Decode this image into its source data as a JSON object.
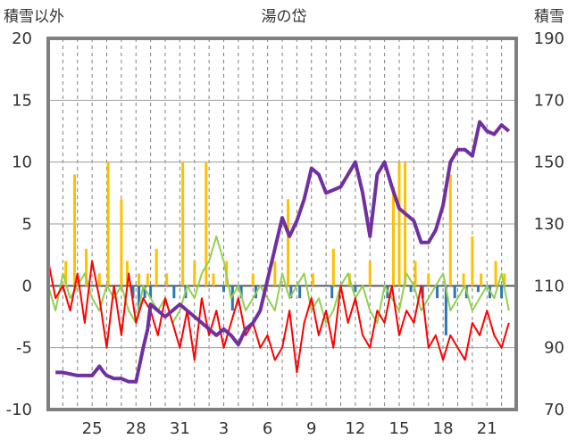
{
  "chart_data": {
    "type": "line",
    "title": "湯の岱",
    "left_axis_label": "積雪以外",
    "right_axis_label": "積雪",
    "left_ylim": [
      -10,
      20
    ],
    "right_ylim": [
      70,
      190
    ],
    "left_ticks": [
      "20",
      "15",
      "10",
      "5",
      "0",
      "-5",
      "-10"
    ],
    "right_ticks": [
      "190",
      "170",
      "150",
      "130",
      "110",
      "90",
      "70"
    ],
    "x_ticks": [
      {
        "day": 3,
        "label": "25"
      },
      {
        "day": 6,
        "label": "28"
      },
      {
        "day": 9,
        "label": "31"
      },
      {
        "day": 12,
        "label": "3"
      },
      {
        "day": 15,
        "label": "6"
      },
      {
        "day": 18,
        "label": "9"
      },
      {
        "day": 21,
        "label": "12"
      },
      {
        "day": 24,
        "label": "15"
      },
      {
        "day": 27,
        "label": "18"
      },
      {
        "day": 30,
        "label": "21"
      }
    ],
    "x_range_days": [
      0,
      32
    ],
    "grid": "vertical dashed daily, horizontal every 5",
    "colors": {
      "snow_depth": "#7030a0",
      "temperature": "#ff0000",
      "temp_secondary": "#92d050",
      "precipitation": "#ffc000",
      "snow_change": "#2e75b6",
      "frame": "#7f7f7f"
    },
    "series": [
      {
        "axis": "right",
        "color_key": "snow_depth",
        "x": [
          0.5,
          1,
          2,
          2.5,
          3,
          3.5,
          3.8,
          4,
          4.5,
          5,
          5.5,
          6,
          6.5,
          6.8,
          7,
          7.5,
          8,
          8.5,
          9,
          9.5,
          10,
          10.5,
          11,
          11.5,
          12,
          12.5,
          13,
          13.5,
          14,
          14.5,
          15,
          15.5,
          16,
          16.5,
          17,
          17.5,
          18,
          18.5,
          19,
          19.5,
          20,
          20.5,
          21,
          21.5,
          22,
          22.5,
          23,
          23.5,
          24,
          24.5,
          25,
          25.5,
          26,
          26.5,
          27,
          27.5,
          28,
          28.5,
          29,
          29.5,
          30,
          30.5,
          31,
          31.5
        ],
        "values": [
          82,
          82,
          81,
          81,
          81,
          84,
          82,
          81,
          80,
          80,
          79,
          79,
          90,
          96,
          104,
          102,
          100,
          102,
          104,
          102,
          100,
          98,
          96,
          94,
          96,
          94,
          91,
          96,
          98,
          102,
          112,
          122,
          132,
          126,
          131,
          138,
          148,
          146,
          140,
          141,
          142,
          146,
          150,
          140,
          126,
          146,
          150,
          142,
          135,
          133,
          131,
          124,
          124,
          128,
          136,
          150,
          154,
          154,
          152,
          163,
          160,
          159,
          162,
          160
        ]
      },
      {
        "axis": "left",
        "color_key": "temperature",
        "x": [
          0,
          0.5,
          1,
          1.5,
          2,
          2.5,
          3,
          3.5,
          4,
          4.5,
          5,
          5.5,
          6,
          6.5,
          7,
          7.5,
          8,
          8.5,
          9,
          9.5,
          10,
          10.5,
          11,
          11.5,
          12,
          12.5,
          13,
          13.5,
          14,
          14.5,
          15,
          15.5,
          16,
          16.5,
          17,
          17.5,
          18,
          18.5,
          19,
          19.5,
          20,
          20.5,
          21,
          21.5,
          22,
          22.5,
          23,
          23.5,
          24,
          24.5,
          25,
          25.5,
          26,
          26.5,
          27,
          27.5,
          28,
          28.5,
          29,
          29.5,
          30,
          30.5,
          31,
          31.5
        ],
        "values": [
          2,
          -1,
          0,
          -2,
          1,
          -3,
          2,
          -1,
          -5,
          0,
          -4,
          1,
          -3,
          -1,
          -2,
          -4,
          -1,
          -3,
          -5,
          -2,
          -6,
          -1,
          -4,
          -2,
          -5,
          -3,
          -1,
          -4,
          -3,
          -5,
          -4,
          -6,
          -5,
          -2,
          -7,
          -3,
          -1,
          -4,
          -2,
          -5,
          0,
          -3,
          -1,
          -4,
          -5,
          -2,
          -3,
          0,
          -4,
          -2,
          -3,
          0,
          -5,
          -4,
          -6,
          -4,
          -5,
          -6,
          -3,
          -4,
          -2,
          -4,
          -5,
          -3
        ]
      },
      {
        "axis": "left",
        "color_key": "temp_secondary",
        "x": [
          0,
          0.5,
          1,
          1.5,
          2,
          2.5,
          3,
          3.5,
          4,
          4.5,
          5,
          5.5,
          6,
          6.5,
          7,
          7.5,
          8,
          8.5,
          9,
          9.5,
          10,
          10.5,
          11,
          11.5,
          12,
          12.5,
          13,
          13.5,
          14,
          14.5,
          15,
          15.5,
          16,
          16.5,
          17,
          17.5,
          18,
          18.5,
          19,
          19.5,
          20,
          20.5,
          21,
          21.5,
          22,
          22.5,
          23,
          23.5,
          24,
          24.5,
          25,
          25.5,
          26,
          26.5,
          27,
          27.5,
          28,
          28.5,
          29,
          29.5,
          30,
          30.5,
          31,
          31.5
        ],
        "values": [
          0,
          -2,
          1,
          -1,
          0,
          1,
          -1,
          -2,
          0,
          -1,
          0,
          -2,
          -3,
          0,
          -1,
          -2,
          -1,
          -3,
          -2,
          0,
          -1,
          1,
          2,
          4,
          2,
          -1,
          0,
          -2,
          -1,
          0,
          -1,
          -2,
          1,
          -1,
          0,
          1,
          -2,
          -1,
          -3,
          -2,
          0,
          1,
          -1,
          0,
          -2,
          -3,
          0,
          -1,
          -2,
          1,
          0,
          -2,
          -1,
          0,
          1,
          -2,
          -1,
          0,
          -2,
          -1,
          0,
          -1,
          1,
          -2
        ]
      }
    ],
    "bars": [
      {
        "axis": "left",
        "color_key": "precipitation",
        "x": [
          1.2,
          1.8,
          2.6,
          3.5,
          4.1,
          5.0,
          5.4,
          6.2,
          6.8,
          7.4,
          8.1,
          9.2,
          10.0,
          10.8,
          11.3,
          12.2,
          14.0,
          15.5,
          16.4,
          18.1,
          19.5,
          20.6,
          22.0,
          23.6,
          24.0,
          24.4,
          25.1,
          26.0,
          27.5,
          28.4,
          29.0,
          29.6,
          30.6,
          31.2
        ],
        "values": [
          2,
          9,
          3,
          1,
          10,
          7,
          2,
          1,
          1,
          3,
          1,
          10,
          2,
          10,
          1,
          2,
          1,
          2,
          7,
          1,
          3,
          1,
          2,
          8,
          10,
          10,
          2,
          1,
          9,
          1,
          4,
          1,
          2,
          1
        ]
      },
      {
        "axis": "left",
        "color_key": "snow_change",
        "x": [
          5.8,
          6.2,
          6.6,
          7.0,
          8.6,
          9.4,
          12.0,
          12.6,
          13.2,
          14.2,
          16.6,
          17.2,
          19.4,
          21.0,
          23.2,
          24.8,
          25.6,
          26.6,
          27.2,
          27.8,
          28.6,
          29.4,
          30.2,
          31.0
        ],
        "values": [
          -1,
          -2,
          -1,
          -1,
          -1,
          -1,
          -0.5,
          -2,
          -1,
          -1,
          -1,
          -1,
          -1,
          -0.5,
          -1,
          -0.5,
          -1,
          -1,
          -4,
          -1,
          -1,
          -0.5,
          -1,
          -1
        ]
      }
    ]
  }
}
